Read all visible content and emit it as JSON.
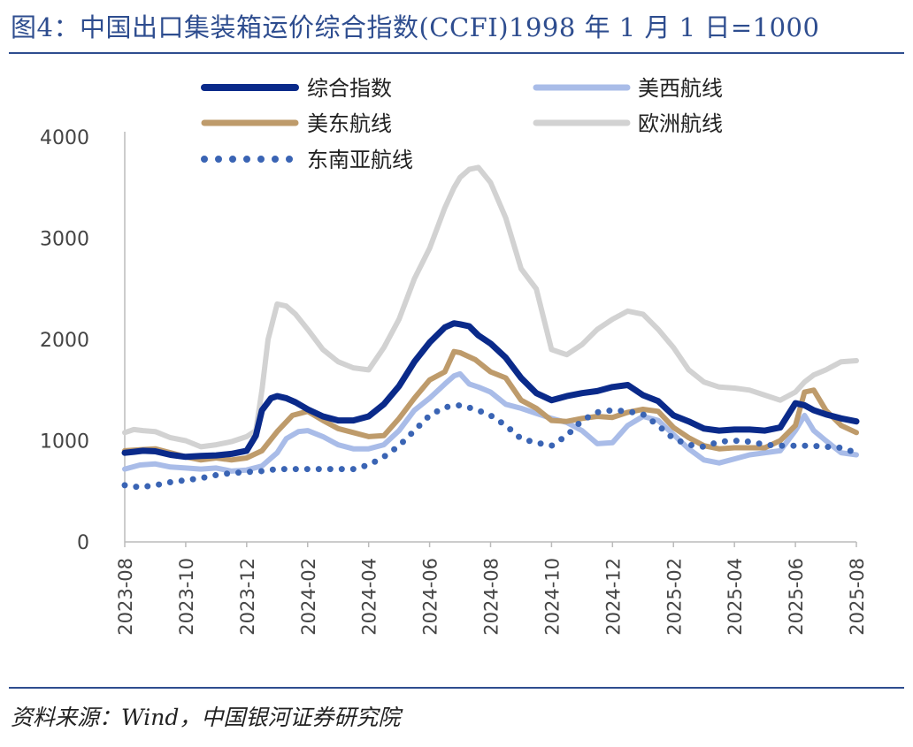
{
  "header": {
    "title": "图4：中国出口集装箱运价综合指数(CCFI)1998 年 1 月 1 日=1000"
  },
  "footer": {
    "source": "资料来源：Wind，中国银河证券研究院"
  },
  "chart_data": {
    "type": "line",
    "title": "图4：中国出口集装箱运价综合指数(CCFI)1998 年 1 月 1 日=1000",
    "xlabel": "",
    "ylabel": "",
    "x_range": [
      "2023-08",
      "2025-08"
    ],
    "x_ticks": [
      "2023-08",
      "2023-10",
      "2023-12",
      "2024-02",
      "2024-04",
      "2024-06",
      "2024-08",
      "2024-10",
      "2024-12",
      "2025-02",
      "2025-04",
      "2025-06",
      "2025-08"
    ],
    "ylim": [
      0,
      4000
    ],
    "y_ticks": [
      0,
      1000,
      2000,
      3000,
      4000
    ],
    "grid": false,
    "legend_placement": "top",
    "series": [
      {
        "name": "综合指数",
        "color": "#0A2A8A",
        "style": "solid",
        "width": 7,
        "values": [
          [
            0,
            880
          ],
          [
            0.3,
            890
          ],
          [
            0.6,
            900
          ],
          [
            1,
            895
          ],
          [
            1.5,
            860
          ],
          [
            2,
            840
          ],
          [
            2.5,
            850
          ],
          [
            3,
            855
          ],
          [
            3.5,
            870
          ],
          [
            4,
            900
          ],
          [
            4.3,
            1050
          ],
          [
            4.5,
            1300
          ],
          [
            4.8,
            1420
          ],
          [
            5,
            1440
          ],
          [
            5.3,
            1420
          ],
          [
            5.6,
            1380
          ],
          [
            6,
            1310
          ],
          [
            6.5,
            1240
          ],
          [
            7,
            1200
          ],
          [
            7.5,
            1200
          ],
          [
            8,
            1240
          ],
          [
            8.5,
            1360
          ],
          [
            9,
            1540
          ],
          [
            9.5,
            1780
          ],
          [
            10,
            1970
          ],
          [
            10.5,
            2120
          ],
          [
            10.8,
            2160
          ],
          [
            11,
            2150
          ],
          [
            11.3,
            2130
          ],
          [
            11.6,
            2040
          ],
          [
            12,
            1960
          ],
          [
            12.5,
            1820
          ],
          [
            13,
            1620
          ],
          [
            13.5,
            1470
          ],
          [
            14,
            1400
          ],
          [
            14.5,
            1440
          ],
          [
            15,
            1470
          ],
          [
            15.5,
            1490
          ],
          [
            16,
            1530
          ],
          [
            16.5,
            1550
          ],
          [
            17,
            1450
          ],
          [
            17.5,
            1390
          ],
          [
            18,
            1250
          ],
          [
            18.5,
            1190
          ],
          [
            19,
            1120
          ],
          [
            19.5,
            1100
          ],
          [
            20,
            1110
          ],
          [
            20.5,
            1110
          ],
          [
            21,
            1100
          ],
          [
            21.5,
            1130
          ],
          [
            22,
            1370
          ],
          [
            22.3,
            1350
          ],
          [
            22.6,
            1300
          ],
          [
            23,
            1260
          ],
          [
            23.5,
            1220
          ],
          [
            24,
            1190
          ]
        ]
      },
      {
        "name": "美西航线",
        "color": "#A9BCE8",
        "style": "solid",
        "width": 6,
        "values": [
          [
            0,
            720
          ],
          [
            0.5,
            760
          ],
          [
            1,
            770
          ],
          [
            1.5,
            740
          ],
          [
            2,
            730
          ],
          [
            2.5,
            720
          ],
          [
            3,
            730
          ],
          [
            3.5,
            700
          ],
          [
            4,
            710
          ],
          [
            4.5,
            750
          ],
          [
            5,
            880
          ],
          [
            5.3,
            1020
          ],
          [
            5.7,
            1090
          ],
          [
            6,
            1100
          ],
          [
            6.5,
            1040
          ],
          [
            7,
            960
          ],
          [
            7.5,
            920
          ],
          [
            8,
            920
          ],
          [
            8.5,
            960
          ],
          [
            9,
            1100
          ],
          [
            9.5,
            1300
          ],
          [
            10,
            1420
          ],
          [
            10.5,
            1560
          ],
          [
            10.8,
            1640
          ],
          [
            11,
            1660
          ],
          [
            11.3,
            1560
          ],
          [
            11.6,
            1530
          ],
          [
            12,
            1480
          ],
          [
            12.5,
            1360
          ],
          [
            13,
            1320
          ],
          [
            13.5,
            1270
          ],
          [
            14,
            1220
          ],
          [
            14.5,
            1180
          ],
          [
            15,
            1100
          ],
          [
            15.5,
            970
          ],
          [
            16,
            980
          ],
          [
            16.5,
            1150
          ],
          [
            17,
            1240
          ],
          [
            17.5,
            1200
          ],
          [
            18,
            1060
          ],
          [
            18.5,
            920
          ],
          [
            19,
            810
          ],
          [
            19.5,
            780
          ],
          [
            20,
            820
          ],
          [
            20.5,
            860
          ],
          [
            21,
            880
          ],
          [
            21.5,
            900
          ],
          [
            22,
            1100
          ],
          [
            22.3,
            1250
          ],
          [
            22.6,
            1100
          ],
          [
            23,
            1000
          ],
          [
            23.5,
            880
          ],
          [
            24,
            860
          ]
        ]
      },
      {
        "name": "美东航线",
        "color": "#BE9B6B",
        "style": "solid",
        "width": 6,
        "values": [
          [
            0,
            900
          ],
          [
            0.5,
            910
          ],
          [
            1,
            920
          ],
          [
            1.5,
            880
          ],
          [
            2,
            840
          ],
          [
            2.5,
            810
          ],
          [
            3,
            830
          ],
          [
            3.5,
            810
          ],
          [
            4,
            830
          ],
          [
            4.5,
            900
          ],
          [
            5,
            1090
          ],
          [
            5.5,
            1250
          ],
          [
            6,
            1290
          ],
          [
            6.5,
            1200
          ],
          [
            7,
            1120
          ],
          [
            7.5,
            1080
          ],
          [
            8,
            1040
          ],
          [
            8.5,
            1050
          ],
          [
            9,
            1220
          ],
          [
            9.5,
            1420
          ],
          [
            10,
            1600
          ],
          [
            10.5,
            1680
          ],
          [
            10.8,
            1880
          ],
          [
            11,
            1870
          ],
          [
            11.5,
            1800
          ],
          [
            12,
            1680
          ],
          [
            12.5,
            1620
          ],
          [
            13,
            1400
          ],
          [
            13.5,
            1320
          ],
          [
            14,
            1200
          ],
          [
            14.5,
            1190
          ],
          [
            15,
            1220
          ],
          [
            15.5,
            1240
          ],
          [
            16,
            1230
          ],
          [
            16.5,
            1280
          ],
          [
            17,
            1310
          ],
          [
            17.5,
            1290
          ],
          [
            18,
            1130
          ],
          [
            18.5,
            1030
          ],
          [
            19,
            950
          ],
          [
            19.5,
            920
          ],
          [
            20,
            930
          ],
          [
            20.5,
            930
          ],
          [
            21,
            930
          ],
          [
            21.5,
            1000
          ],
          [
            22,
            1150
          ],
          [
            22.3,
            1480
          ],
          [
            22.6,
            1500
          ],
          [
            23,
            1300
          ],
          [
            23.5,
            1150
          ],
          [
            24,
            1080
          ]
        ]
      },
      {
        "name": "欧洲航线",
        "color": "#D2D2D2",
        "style": "solid",
        "width": 6,
        "values": [
          [
            0,
            1080
          ],
          [
            0.3,
            1110
          ],
          [
            0.6,
            1100
          ],
          [
            1,
            1090
          ],
          [
            1.5,
            1030
          ],
          [
            2,
            1000
          ],
          [
            2.5,
            940
          ],
          [
            3,
            960
          ],
          [
            3.5,
            990
          ],
          [
            4,
            1040
          ],
          [
            4.3,
            1100
          ],
          [
            4.5,
            1500
          ],
          [
            4.7,
            2000
          ],
          [
            5,
            2350
          ],
          [
            5.3,
            2330
          ],
          [
            5.6,
            2250
          ],
          [
            6,
            2100
          ],
          [
            6.5,
            1900
          ],
          [
            7,
            1780
          ],
          [
            7.5,
            1720
          ],
          [
            8,
            1700
          ],
          [
            8.5,
            1920
          ],
          [
            9,
            2200
          ],
          [
            9.5,
            2600
          ],
          [
            10,
            2900
          ],
          [
            10.5,
            3300
          ],
          [
            10.8,
            3500
          ],
          [
            11,
            3600
          ],
          [
            11.3,
            3680
          ],
          [
            11.6,
            3700
          ],
          [
            12,
            3550
          ],
          [
            12.5,
            3200
          ],
          [
            13,
            2700
          ],
          [
            13.5,
            2500
          ],
          [
            14,
            1900
          ],
          [
            14.5,
            1850
          ],
          [
            15,
            1950
          ],
          [
            15.5,
            2100
          ],
          [
            16,
            2200
          ],
          [
            16.5,
            2280
          ],
          [
            17,
            2250
          ],
          [
            17.5,
            2100
          ],
          [
            18,
            1920
          ],
          [
            18.5,
            1700
          ],
          [
            19,
            1580
          ],
          [
            19.5,
            1530
          ],
          [
            20,
            1520
          ],
          [
            20.5,
            1500
          ],
          [
            21,
            1450
          ],
          [
            21.5,
            1400
          ],
          [
            22,
            1480
          ],
          [
            22.3,
            1580
          ],
          [
            22.6,
            1650
          ],
          [
            23,
            1700
          ],
          [
            23.5,
            1780
          ],
          [
            24,
            1790
          ]
        ]
      },
      {
        "name": "东南亚航线",
        "color": "#3A64B4",
        "style": "dotted",
        "width": 6,
        "values": [
          [
            0,
            560
          ],
          [
            0.5,
            540
          ],
          [
            1,
            560
          ],
          [
            1.5,
            590
          ],
          [
            2,
            610
          ],
          [
            2.5,
            630
          ],
          [
            3,
            660
          ],
          [
            3.5,
            680
          ],
          [
            4,
            690
          ],
          [
            4.5,
            700
          ],
          [
            5,
            720
          ],
          [
            5.5,
            720
          ],
          [
            6,
            720
          ],
          [
            6.5,
            720
          ],
          [
            7,
            720
          ],
          [
            7.5,
            720
          ],
          [
            8,
            760
          ],
          [
            8.5,
            840
          ],
          [
            9,
            950
          ],
          [
            9.5,
            1100
          ],
          [
            10,
            1250
          ],
          [
            10.5,
            1330
          ],
          [
            11,
            1350
          ],
          [
            11.5,
            1310
          ],
          [
            12,
            1250
          ],
          [
            12.5,
            1150
          ],
          [
            13,
            1020
          ],
          [
            13.5,
            980
          ],
          [
            14,
            950
          ],
          [
            14.5,
            1050
          ],
          [
            15,
            1200
          ],
          [
            15.5,
            1280
          ],
          [
            16,
            1300
          ],
          [
            16.5,
            1290
          ],
          [
            17,
            1260
          ],
          [
            17.5,
            1150
          ],
          [
            18,
            1020
          ],
          [
            18.5,
            960
          ],
          [
            19,
            940
          ],
          [
            19.5,
            990
          ],
          [
            20,
            1000
          ],
          [
            20.5,
            990
          ],
          [
            21,
            960
          ],
          [
            21.5,
            950
          ],
          [
            22,
            950
          ],
          [
            22.5,
            950
          ],
          [
            23,
            940
          ],
          [
            23.5,
            930
          ],
          [
            24,
            880
          ]
        ]
      }
    ]
  }
}
